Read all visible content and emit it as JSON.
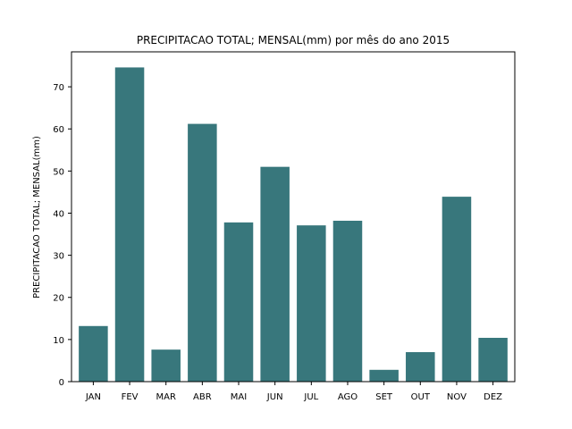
{
  "chart_data": {
    "type": "bar",
    "title": "PRECIPITACAO TOTAL; MENSAL(mm) por mês do ano 2015",
    "xlabel": "",
    "ylabel": "PRECIPITACAO TOTAL; MENSAL(mm)",
    "categories": [
      "JAN",
      "FEV",
      "MAR",
      "ABR",
      "MAI",
      "JUN",
      "JUL",
      "AGO",
      "SET",
      "OUT",
      "NOV",
      "DEZ"
    ],
    "values": [
      13.2,
      74.6,
      7.6,
      61.2,
      37.8,
      51.0,
      37.1,
      38.2,
      2.8,
      7.0,
      43.9,
      10.4
    ],
    "ylim": [
      0,
      78.3
    ],
    "yticks": [
      0,
      10,
      20,
      30,
      40,
      50,
      60,
      70
    ],
    "bar_color": "#38777c",
    "grid": false,
    "legend": "none"
  }
}
